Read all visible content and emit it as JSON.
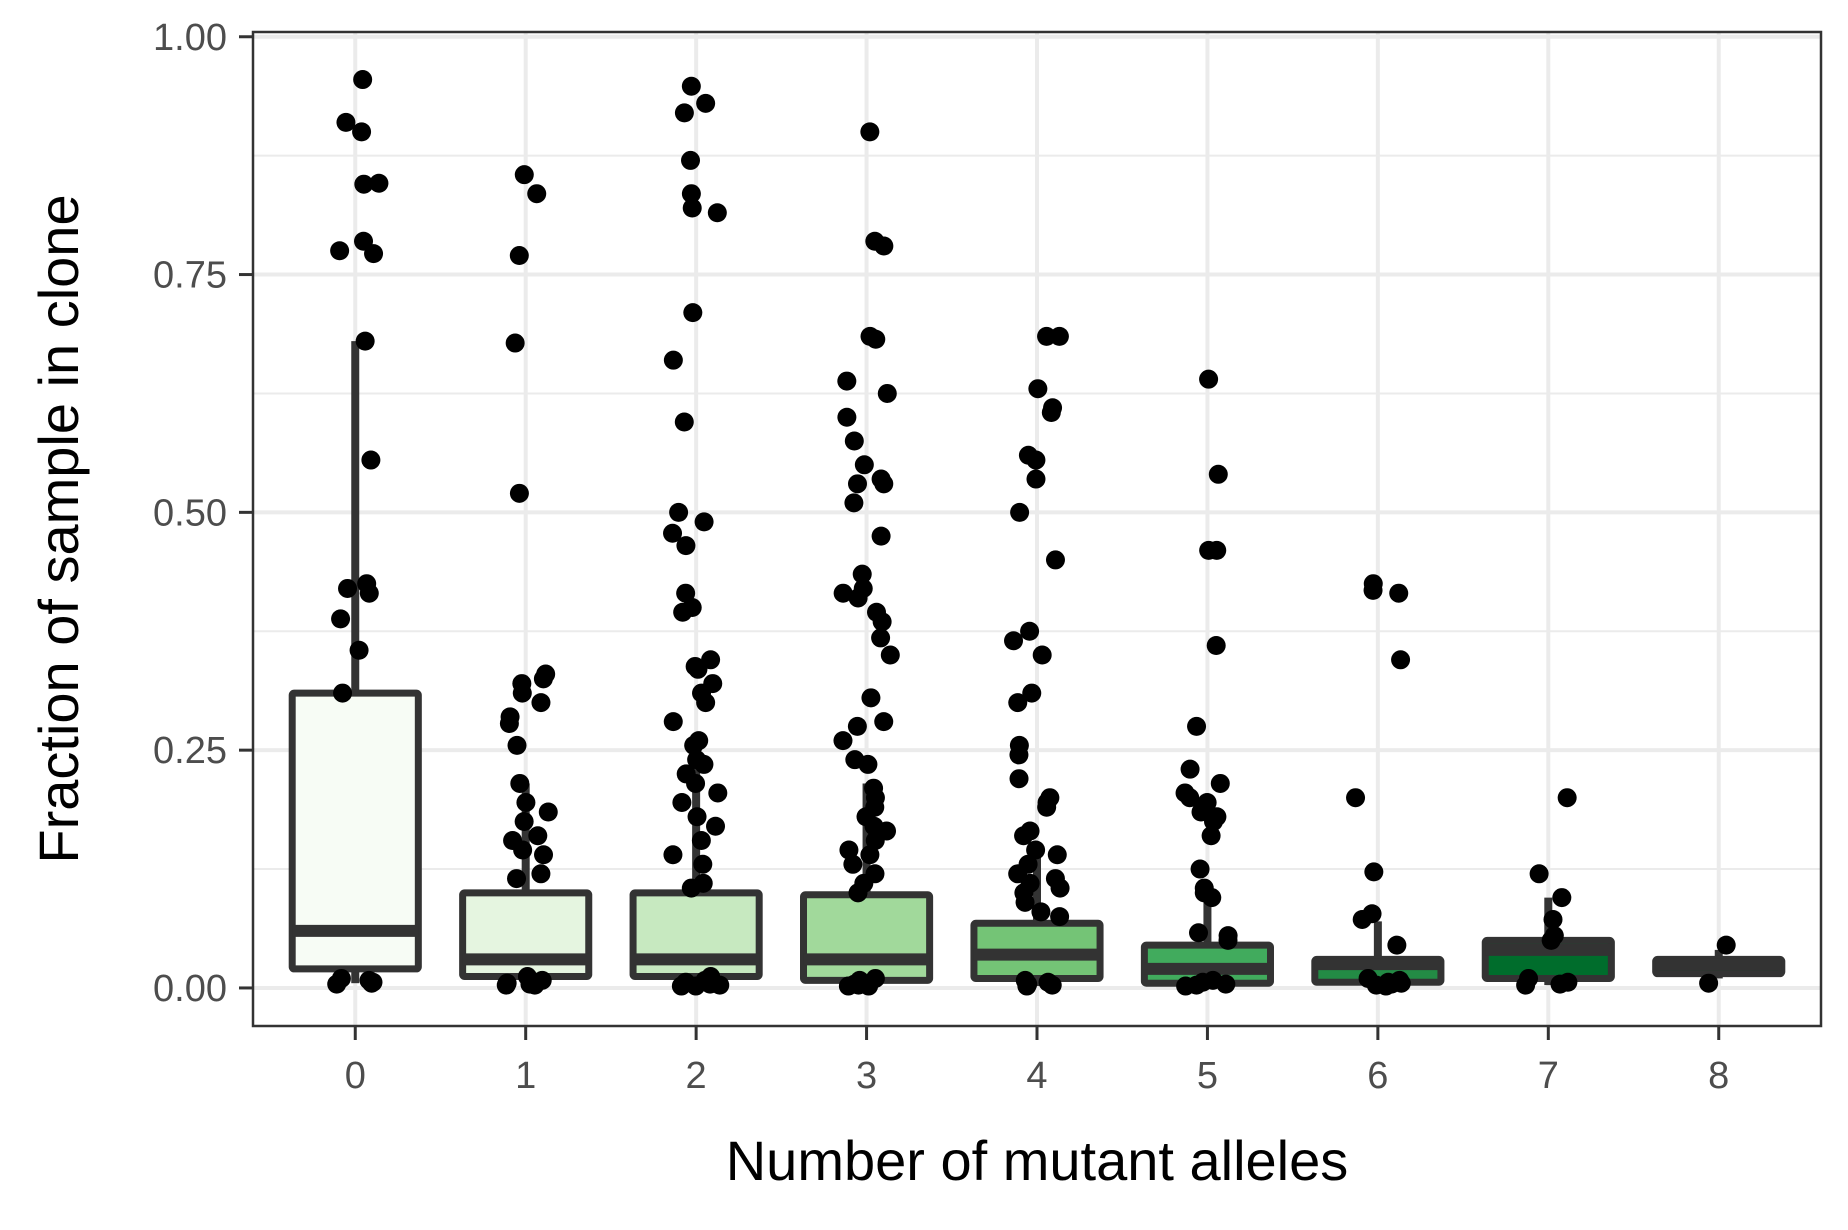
{
  "chart_data": {
    "type": "boxplot",
    "xlabel": "Number of mutant alleles",
    "ylabel": "Fraction of sample in clone",
    "categories": [
      "0",
      "1",
      "2",
      "3",
      "4",
      "5",
      "6",
      "7",
      "8"
    ],
    "ylim": [
      -0.04,
      1.005
    ],
    "yticks": [
      0.0,
      0.25,
      0.5,
      0.75,
      1.0
    ],
    "ytick_labels": [
      "0.00",
      "0.25",
      "0.50",
      "0.75",
      "1.00"
    ],
    "grid": true,
    "legend": "none",
    "boxes": [
      {
        "category": "0",
        "lower": 0.005,
        "q1": 0.02,
        "median": 0.06,
        "q3": 0.31,
        "upper": 0.68,
        "fill": "#f7fcf5"
      },
      {
        "category": "1",
        "lower": 0.003,
        "q1": 0.012,
        "median": 0.03,
        "q3": 0.1,
        "upper": 0.215,
        "fill": "#e5f5e0"
      },
      {
        "category": "2",
        "lower": 0.002,
        "q1": 0.012,
        "median": 0.03,
        "q3": 0.1,
        "upper": 0.24,
        "fill": "#c7e9c0"
      },
      {
        "category": "3",
        "lower": 0.002,
        "q1": 0.008,
        "median": 0.03,
        "q3": 0.098,
        "upper": 0.215,
        "fill": "#a1d99b"
      },
      {
        "category": "4",
        "lower": 0.002,
        "q1": 0.01,
        "median": 0.035,
        "q3": 0.068,
        "upper": 0.15,
        "fill": "#74c476"
      },
      {
        "category": "5",
        "lower": 0.002,
        "q1": 0.005,
        "median": 0.02,
        "q3": 0.045,
        "upper": 0.1,
        "fill": "#41ab5d"
      },
      {
        "category": "6",
        "lower": 0.002,
        "q1": 0.006,
        "median": 0.025,
        "q3": 0.03,
        "upper": 0.07,
        "fill": "#238b45"
      },
      {
        "category": "7",
        "lower": 0.003,
        "q1": 0.01,
        "median": 0.04,
        "q3": 0.05,
        "upper": 0.095,
        "fill": "#006d2c"
      },
      {
        "category": "8",
        "lower": 0.01,
        "q1": 0.015,
        "median": 0.025,
        "q3": 0.03,
        "upper": 0.04,
        "fill": "#00441b"
      }
    ],
    "points": [
      {
        "category": "0",
        "x_offset": 0.0,
        "values": [
          0.955,
          0.91,
          0.9,
          0.846,
          0.845,
          0.785,
          0.775,
          0.772,
          0.68,
          0.555,
          0.425,
          0.42,
          0.415,
          0.388,
          0.355,
          0.31,
          0.01,
          0.008,
          0.006,
          0.005,
          0.004
        ]
      },
      {
        "category": "1",
        "x_offset": 0.0,
        "values": [
          0.855,
          0.835,
          0.77,
          0.678,
          0.52,
          0.33,
          0.325,
          0.32,
          0.31,
          0.3,
          0.285,
          0.278,
          0.255,
          0.215,
          0.195,
          0.185,
          0.175,
          0.16,
          0.155,
          0.145,
          0.14,
          0.12,
          0.115,
          0.012,
          0.008,
          0.006,
          0.005,
          0.004,
          0.003,
          0.003
        ]
      },
      {
        "category": "2",
        "x_offset": 0.0,
        "values": [
          0.948,
          0.93,
          0.92,
          0.87,
          0.835,
          0.82,
          0.815,
          0.71,
          0.66,
          0.595,
          0.5,
          0.49,
          0.478,
          0.465,
          0.415,
          0.4,
          0.395,
          0.345,
          0.338,
          0.335,
          0.32,
          0.31,
          0.3,
          0.28,
          0.26,
          0.255,
          0.24,
          0.235,
          0.225,
          0.215,
          0.205,
          0.195,
          0.18,
          0.17,
          0.155,
          0.14,
          0.13,
          0.11,
          0.105,
          0.012,
          0.008,
          0.006,
          0.004,
          0.003,
          0.002,
          0.002
        ]
      },
      {
        "category": "3",
        "x_offset": 0.0,
        "values": [
          0.9,
          0.785,
          0.78,
          0.685,
          0.682,
          0.638,
          0.625,
          0.6,
          0.575,
          0.55,
          0.535,
          0.53,
          0.53,
          0.51,
          0.475,
          0.435,
          0.42,
          0.415,
          0.41,
          0.395,
          0.385,
          0.368,
          0.35,
          0.305,
          0.28,
          0.275,
          0.26,
          0.24,
          0.235,
          0.21,
          0.2,
          0.19,
          0.18,
          0.17,
          0.165,
          0.155,
          0.145,
          0.14,
          0.13,
          0.12,
          0.11,
          0.1,
          0.01,
          0.008,
          0.006,
          0.004,
          0.003,
          0.002,
          0.002
        ]
      },
      {
        "category": "4",
        "x_offset": 0.0,
        "values": [
          0.685,
          0.685,
          0.63,
          0.61,
          0.605,
          0.56,
          0.555,
          0.535,
          0.5,
          0.45,
          0.375,
          0.365,
          0.35,
          0.31,
          0.3,
          0.255,
          0.245,
          0.22,
          0.2,
          0.195,
          0.19,
          0.165,
          0.16,
          0.145,
          0.14,
          0.13,
          0.12,
          0.115,
          0.11,
          0.105,
          0.1,
          0.09,
          0.08,
          0.075,
          0.008,
          0.006,
          0.004,
          0.003,
          0.002
        ]
      },
      {
        "category": "5",
        "x_offset": 0.0,
        "values": [
          0.64,
          0.54,
          0.46,
          0.46,
          0.36,
          0.275,
          0.23,
          0.215,
          0.205,
          0.2,
          0.195,
          0.19,
          0.185,
          0.18,
          0.175,
          0.16,
          0.125,
          0.105,
          0.1,
          0.095,
          0.058,
          0.055,
          0.05,
          0.008,
          0.006,
          0.004,
          0.003,
          0.002
        ]
      },
      {
        "category": "6",
        "x_offset": 0.0,
        "values": [
          0.425,
          0.418,
          0.415,
          0.345,
          0.2,
          0.122,
          0.078,
          0.072,
          0.045,
          0.01,
          0.008,
          0.006,
          0.005,
          0.004,
          0.003,
          0.002
        ]
      },
      {
        "category": "7",
        "x_offset": 0.0,
        "values": [
          0.2,
          0.12,
          0.095,
          0.072,
          0.055,
          0.05,
          0.01,
          0.006,
          0.004,
          0.003
        ]
      },
      {
        "category": "8",
        "x_offset": 0.0,
        "values": [
          0.045,
          0.005
        ]
      }
    ]
  }
}
